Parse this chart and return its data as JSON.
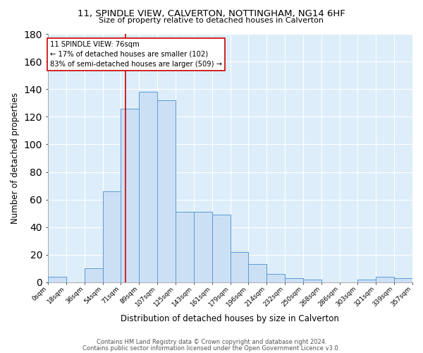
{
  "title": "11, SPINDLE VIEW, CALVERTON, NOTTINGHAM, NG14 6HF",
  "subtitle": "Size of property relative to detached houses in Calverton",
  "xlabel": "Distribution of detached houses by size in Calverton",
  "ylabel": "Number of detached properties",
  "footnote1": "Contains HM Land Registry data © Crown copyright and database right 2024.",
  "footnote2": "Contains public sector information licensed under the Open Government Licence v3.0.",
  "bar_edges": [
    0,
    18,
    36,
    54,
    71,
    89,
    107,
    125,
    143,
    161,
    179,
    196,
    214,
    232,
    250,
    268,
    286,
    303,
    321,
    339,
    357
  ],
  "bar_heights": [
    4,
    0,
    10,
    66,
    126,
    138,
    132,
    51,
    51,
    49,
    22,
    13,
    6,
    3,
    2,
    0,
    0,
    2,
    4,
    3
  ],
  "tick_labels": [
    "0sqm",
    "18sqm",
    "36sqm",
    "54sqm",
    "71sqm",
    "89sqm",
    "107sqm",
    "125sqm",
    "143sqm",
    "161sqm",
    "179sqm",
    "196sqm",
    "214sqm",
    "232sqm",
    "250sqm",
    "268sqm",
    "286sqm",
    "303sqm",
    "321sqm",
    "339sqm",
    "357sqm"
  ],
  "bar_facecolor": "#cce0f5",
  "bar_edgecolor": "#5b9bd5",
  "background_color": "#ddeefa",
  "grid_color": "#ffffff",
  "vline_x": 76,
  "vline_color": "#cc0000",
  "annotation_text": "11 SPINDLE VIEW: 76sqm\n← 17% of detached houses are smaller (102)\n83% of semi-detached houses are larger (509) →",
  "annotation_box_color": "#ffffff",
  "annotation_box_edgecolor": "#cc0000",
  "ylim": [
    0,
    180
  ],
  "xlim": [
    0,
    357
  ],
  "yticks": [
    0,
    20,
    40,
    60,
    80,
    100,
    120,
    140,
    160,
    180
  ]
}
